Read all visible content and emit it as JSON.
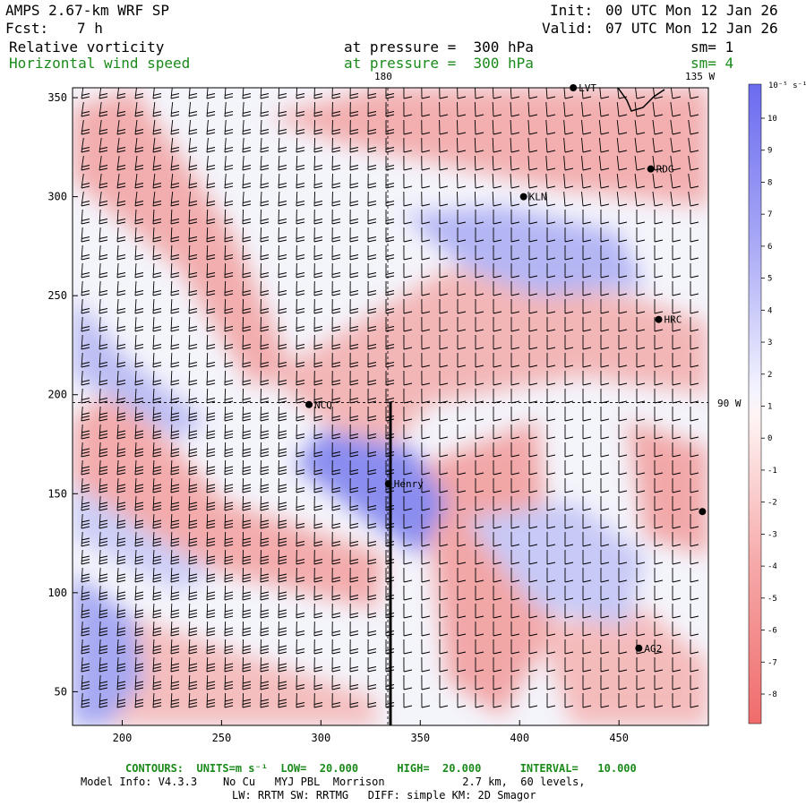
{
  "header": {
    "model_title": "AMPS 2.67-km WRF SP",
    "init_label": "Init:",
    "init_value": "00 UTC Mon 12 Jan 26",
    "fcst_label": "Fcst:",
    "fcst_value": "7 h",
    "valid_label": "Valid:",
    "valid_value": "07 UTC Mon 12 Jan 26",
    "field1_name": "Relative vorticity",
    "field1_level": "at pressure =  300 hPa",
    "field1_sm": "sm= 1",
    "field2_name": "Horizontal wind speed",
    "field2_level": "at pressure =  300 hPa",
    "field2_sm": "sm= 4"
  },
  "map": {
    "lon_labels": {
      "top_a": "180",
      "top_b": "135 W",
      "right": "90 W"
    },
    "x_ticks": [
      "200",
      "250",
      "300",
      "350",
      "400",
      "450"
    ],
    "x_tick_values": [
      200,
      250,
      300,
      350,
      400,
      450
    ],
    "y_ticks": [
      "50",
      "100",
      "150",
      "200",
      "250",
      "300",
      "350"
    ],
    "y_tick_values": [
      50,
      100,
      150,
      200,
      250,
      300,
      350
    ],
    "x_range": [
      175,
      495
    ],
    "y_range": [
      33,
      355
    ],
    "stations": [
      {
        "name": "LVT",
        "x": 427,
        "y": 355
      },
      {
        "name": "RDG",
        "x": 466,
        "y": 314
      },
      {
        "name": "KLN",
        "x": 402,
        "y": 300
      },
      {
        "name": "HRC",
        "x": 470,
        "y": 238
      },
      {
        "name": "NCQ",
        "x": 294,
        "y": 195
      },
      {
        "name": "Henry",
        "x": 334,
        "y": 155
      },
      {
        "name": "AG2",
        "x": 460,
        "y": 72
      },
      {
        "name": "",
        "x": 492,
        "y": 141
      }
    ],
    "cross_section": {
      "x": 335,
      "y_from": 33,
      "y_to": 196
    }
  },
  "colorbar": {
    "unit_label": "10⁻⁵ s⁻¹",
    "labels": [
      "10",
      "9",
      "8",
      "7",
      "6",
      "5",
      "4",
      "3",
      "2",
      "1",
      "0",
      "-1",
      "-2",
      "-3",
      "-4",
      "-5",
      "-6",
      "-7",
      "-8"
    ],
    "positive_color": "#6b6bf0",
    "negative_color": "#f06b6b"
  },
  "footer": {
    "contours_line": "CONTOURS:  UNITS=m s⁻¹  LOW=  20.000      HIGH=  20.000      INTERVAL=   10.000",
    "model_info_line": "Model Info: V4.3.3    No Cu   MYJ PBL  Morrison            2.7 km,  60 levels,",
    "physics_line": "LW: RRTM SW: RRTMG   DIFF: simple KM: 2D Smagor"
  }
}
